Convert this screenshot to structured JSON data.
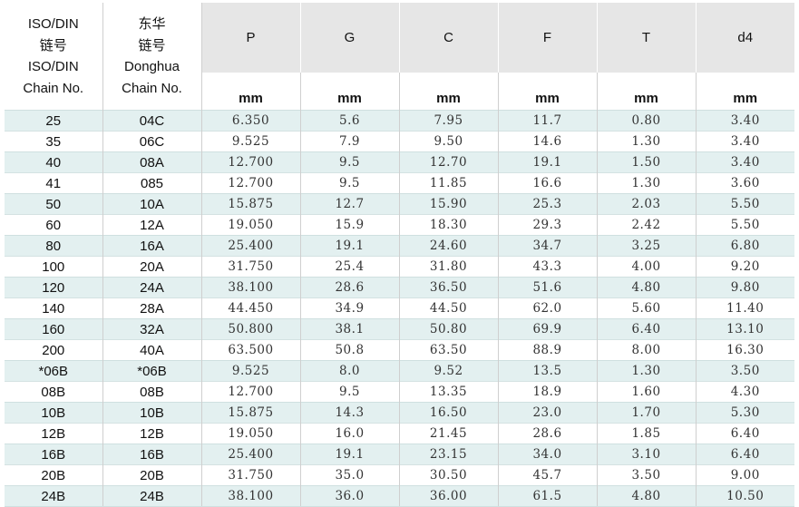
{
  "header": {
    "col_iso": [
      "ISO/DIN",
      "链号",
      "ISO/DIN",
      "Chain No."
    ],
    "col_donghua": [
      "东华",
      "链号",
      "Donghua",
      "Chain No."
    ],
    "dims": [
      "P",
      "G",
      "C",
      "F",
      "T",
      "d4"
    ],
    "units": [
      "mm",
      "mm",
      "mm",
      "mm",
      "mm",
      "mm"
    ]
  },
  "rows": [
    [
      "25",
      "04C",
      "6.350",
      "5.6",
      "7.95",
      "11.7",
      "0.80",
      "3.40"
    ],
    [
      "35",
      "06C",
      "9.525",
      "7.9",
      "9.50",
      "14.6",
      "1.30",
      "3.40"
    ],
    [
      "40",
      "08A",
      "12.700",
      "9.5",
      "12.70",
      "19.1",
      "1.50",
      "3.40"
    ],
    [
      "41",
      "085",
      "12.700",
      "9.5",
      "11.85",
      "16.6",
      "1.30",
      "3.60"
    ],
    [
      "50",
      "10A",
      "15.875",
      "12.7",
      "15.90",
      "25.3",
      "2.03",
      "5.50"
    ],
    [
      "60",
      "12A",
      "19.050",
      "15.9",
      "18.30",
      "29.3",
      "2.42",
      "5.50"
    ],
    [
      "80",
      "16A",
      "25.400",
      "19.1",
      "24.60",
      "34.7",
      "3.25",
      "6.80"
    ],
    [
      "100",
      "20A",
      "31.750",
      "25.4",
      "31.80",
      "43.3",
      "4.00",
      "9.20"
    ],
    [
      "120",
      "24A",
      "38.100",
      "28.6",
      "36.50",
      "51.6",
      "4.80",
      "9.80"
    ],
    [
      "140",
      "28A",
      "44.450",
      "34.9",
      "44.50",
      "62.0",
      "5.60",
      "11.40"
    ],
    [
      "160",
      "32A",
      "50.800",
      "38.1",
      "50.80",
      "69.9",
      "6.40",
      "13.10"
    ],
    [
      "200",
      "40A",
      "63.500",
      "50.8",
      "63.50",
      "88.9",
      "8.00",
      "16.30"
    ],
    [
      "*06B",
      "*06B",
      "9.525",
      "8.0",
      "9.52",
      "13.5",
      "1.30",
      "3.50"
    ],
    [
      "08B",
      "08B",
      "12.700",
      "9.5",
      "13.35",
      "18.9",
      "1.60",
      "4.30"
    ],
    [
      "10B",
      "10B",
      "15.875",
      "14.3",
      "16.50",
      "23.0",
      "1.70",
      "5.30"
    ],
    [
      "12B",
      "12B",
      "19.050",
      "16.0",
      "21.45",
      "28.6",
      "1.85",
      "6.40"
    ],
    [
      "16B",
      "16B",
      "25.400",
      "19.1",
      "23.15",
      "34.0",
      "3.10",
      "6.40"
    ],
    [
      "20B",
      "20B",
      "31.750",
      "35.0",
      "30.50",
      "45.7",
      "3.50",
      "9.00"
    ],
    [
      "24B",
      "24B",
      "38.100",
      "36.0",
      "36.00",
      "61.5",
      "4.80",
      "10.50"
    ]
  ]
}
